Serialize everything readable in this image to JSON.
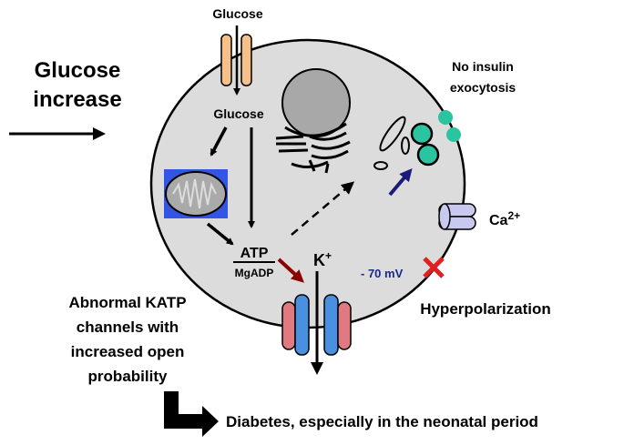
{
  "labels": {
    "glucose_top": "Glucose",
    "glucose_increase_line1": "Glucose",
    "glucose_increase_line2": "increase",
    "glucose_inside": "Glucose",
    "no_insulin_line1": "No insulin",
    "no_insulin_line2": "exocytosis",
    "ca_base": "Ca",
    "ca_sup": "2+",
    "atp": "ATP",
    "mgadp": "MgADP",
    "k_base": "K",
    "k_sup": "+",
    "membrane_potential": "- 70 mV",
    "hyperpolarization": "Hyperpolarization",
    "katp_line1": "Abnormal KATP",
    "katp_line2": "channels with",
    "katp_line3": "increased open",
    "katp_line4": "probability",
    "diabetes": "Diabetes, especially in the neonatal period"
  },
  "colors": {
    "cell_fill": "#dcdcdc",
    "glucose_transporter": "#f5c08a",
    "mito_box": "#3355e6",
    "granule": "#2bc4a0",
    "atp_to_katp_arrow": "#8b0000",
    "granule_arrow": "#1a1a7a",
    "ca_channel": "#c8c8f0",
    "katp_outer": "#e07a80",
    "katp_inner": "#4a90e0",
    "block_x": "#e02020",
    "mv_text": "#1a2a8a"
  },
  "icons": {
    "glucose_transporter": "transporter-icon",
    "mitochondrion": "mitochondrion-icon",
    "golgi": "golgi-icon",
    "insulin_granules": "granule-icon",
    "ca_channel": "calcium-channel-icon",
    "katp_channel": "katp-channel-icon",
    "blocked": "red-x-icon"
  }
}
